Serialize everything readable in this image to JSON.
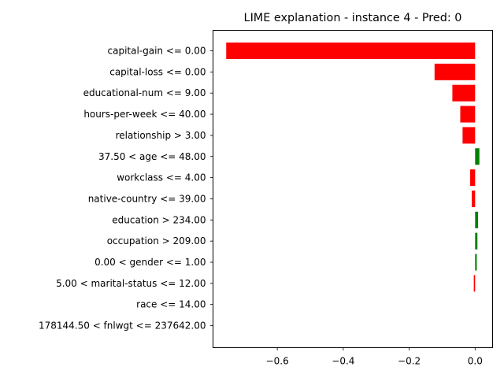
{
  "chart_data": {
    "type": "bar",
    "orientation": "horizontal",
    "title": "LIME explanation - instance 4 - Pred: 0",
    "xlabel": "",
    "ylabel": "",
    "xlim": [
      -0.795,
      0.053
    ],
    "xticks": [
      -0.6,
      -0.4,
      -0.2,
      0.0
    ],
    "xtick_labels": [
      "−0.6",
      "−0.4",
      "−0.2",
      "0.0"
    ],
    "grid": false,
    "legend": "none",
    "colors": {
      "positive": "#008000",
      "negative": "#ff0000"
    },
    "categories": [
      "capital-gain <= 0.00",
      "capital-loss <= 0.00",
      "educational-num <= 9.00",
      "hours-per-week <= 40.00",
      "relationship > 3.00",
      "37.50 < age <= 48.00",
      "workclass <= 4.00",
      "native-country <= 39.00",
      "education > 234.00",
      "occupation > 209.00",
      "0.00 < gender <= 1.00",
      "5.00 < marital-status <= 12.00",
      "race <= 14.00",
      "178144.50 < fnlwgt <= 237642.00"
    ],
    "values": [
      -0.755,
      -0.123,
      -0.069,
      -0.045,
      -0.038,
      0.013,
      -0.015,
      -0.01,
      0.009,
      0.007,
      0.005,
      -0.004,
      0.0,
      0.0
    ]
  }
}
